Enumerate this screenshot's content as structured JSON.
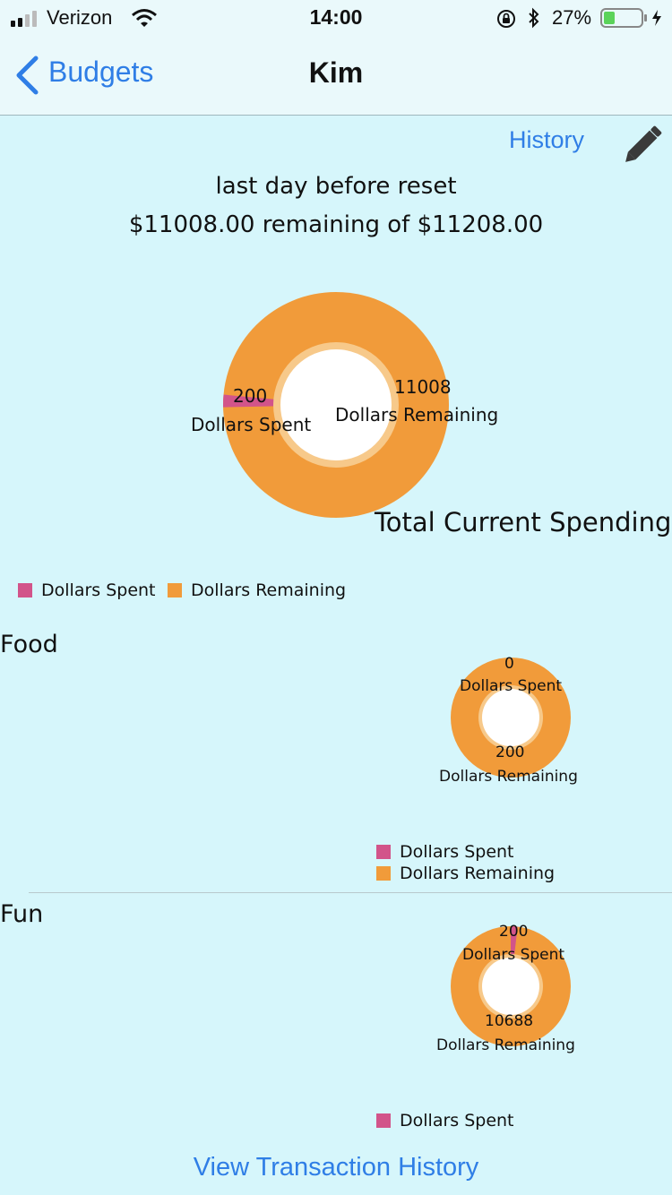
{
  "status_bar": {
    "carrier": "Verizon",
    "time": "14:00",
    "battery": "27%"
  },
  "nav": {
    "back_label": "Budgets",
    "title": "Kim"
  },
  "header": {
    "history_label": "History",
    "reset_text": "last day before reset",
    "remaining_text": "$11008.00 remaining of $11208.00"
  },
  "colors": {
    "spent": "#d2548a",
    "remaining": "#f19b3a",
    "inner_ring": "#f7c98a",
    "accent": "#2f7ee6"
  },
  "charts": {
    "total": {
      "title": "Total Current Spending",
      "spent_value": "200",
      "spent_label": "Dollars Spent",
      "remaining_value": "11008",
      "remaining_label": "Dollars Remaining"
    },
    "food": {
      "title": "Food",
      "spent_value": "0",
      "spent_label": "Dollars Spent",
      "remaining_value": "200",
      "remaining_label": "Dollars Remaining"
    },
    "fun": {
      "title": "Fun",
      "spent_value": "200",
      "spent_label": "Dollars Spent",
      "remaining_value": "10688",
      "remaining_label": "Dollars Remaining"
    }
  },
  "legend": {
    "spent": "Dollars Spent",
    "remaining": "Dollars Remaining"
  },
  "chart_data": [
    {
      "type": "pie",
      "title": "Total Current Spending",
      "categories": [
        "Dollars Spent",
        "Dollars Remaining"
      ],
      "values": [
        200,
        11008
      ]
    },
    {
      "type": "pie",
      "title": "Food",
      "categories": [
        "Dollars Spent",
        "Dollars Remaining"
      ],
      "values": [
        0,
        200
      ]
    },
    {
      "type": "pie",
      "title": "Fun",
      "categories": [
        "Dollars Spent",
        "Dollars Remaining"
      ],
      "values": [
        200,
        10688
      ]
    }
  ],
  "footer": {
    "view_history_label": "View Transaction History"
  }
}
